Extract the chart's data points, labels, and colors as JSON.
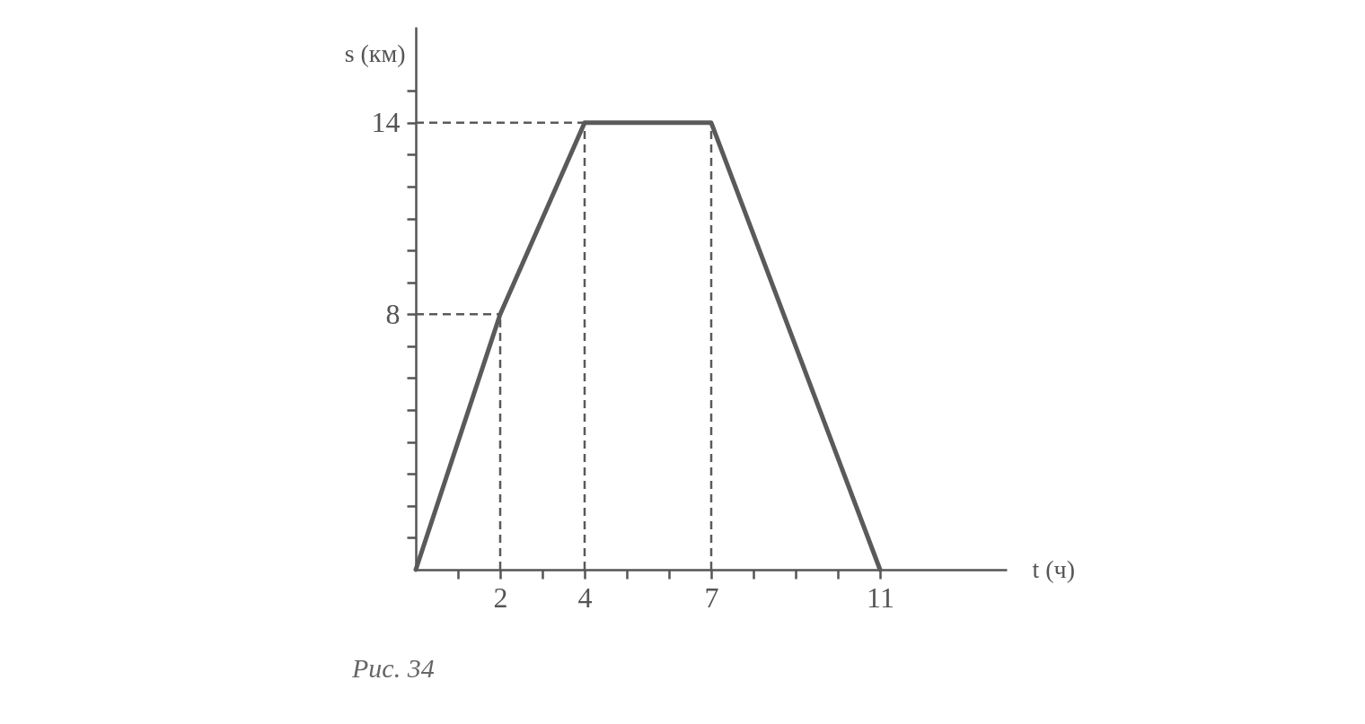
{
  "chart_data": {
    "type": "line",
    "xlabel": "t (ч)",
    "ylabel": "s (км)",
    "annotations": [
      "Рис. 34"
    ],
    "x": [
      0,
      2,
      4,
      7,
      11
    ],
    "series": [
      {
        "color": "#5a5a5a",
        "values": [
          0,
          8,
          14,
          14,
          0
        ]
      }
    ],
    "xlim": [
      0,
      14
    ],
    "ylim": [
      0,
      17
    ],
    "xticks": [
      {
        "value": 1,
        "label": null
      },
      2,
      {
        "value": 3,
        "label": null
      },
      4,
      {
        "value": 5,
        "label": null
      },
      {
        "value": 6,
        "label": null
      },
      7,
      {
        "value": 8,
        "label": null
      },
      {
        "value": 9,
        "label": null
      },
      {
        "value": 10,
        "label": null
      },
      11
    ],
    "yticks": [
      {
        "value": 1,
        "label": null
      },
      {
        "value": 2,
        "label": null
      },
      {
        "value": 3,
        "label": null
      },
      {
        "value": 4,
        "label": null
      },
      {
        "value": 5,
        "label": null
      },
      {
        "value": 6,
        "label": null
      },
      {
        "value": 7,
        "label": null
      },
      8,
      {
        "value": 9,
        "label": null
      },
      {
        "value": 10,
        "label": null
      },
      {
        "value": 11,
        "label": null
      },
      {
        "value": 12,
        "label": null
      },
      {
        "value": 13,
        "label": null
      },
      14,
      {
        "value": 15,
        "label": null
      }
    ],
    "ref_lines": [
      {
        "axis": "y",
        "value": 8,
        "line_style": "dashed",
        "color": "#5a5a5a"
      },
      {
        "axis": "y",
        "value": 14,
        "line_style": "dashed",
        "color": "#5a5a5a"
      },
      {
        "axis": "x",
        "value": 2,
        "line_style": "dashed",
        "color": "#5a5a5a"
      },
      {
        "axis": "x",
        "value": 4,
        "line_style": "dashed",
        "color": "#5a5a5a"
      },
      {
        "axis": "x",
        "value": 7,
        "line_style": "dashed",
        "color": "#5a5a5a"
      }
    ],
    "grid": false,
    "marker": "none",
    "line_style": "solid"
  }
}
